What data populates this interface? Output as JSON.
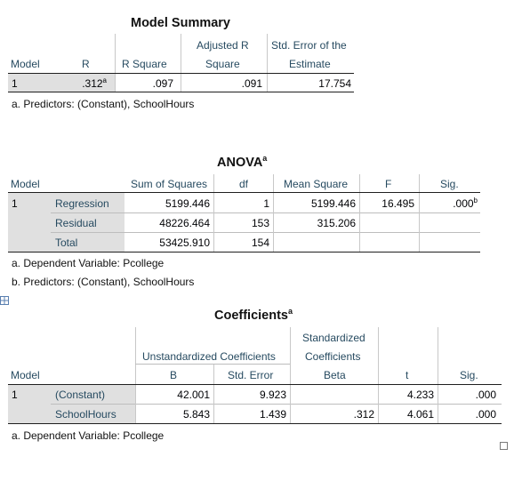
{
  "model_summary": {
    "title": "Model Summary",
    "headers": {
      "model": "Model",
      "r": "R",
      "r_square": "R Square",
      "adj_r_1": "Adjusted R",
      "adj_r_2": "Square",
      "se_1": "Std. Error of the",
      "se_2": "Estimate"
    },
    "row": {
      "model": "1",
      "r": ".312",
      "r_sup": "a",
      "r_square": ".097",
      "adj_r": ".091",
      "se": "17.754"
    },
    "footnote": "a. Predictors: (Constant), SchoolHours"
  },
  "anova": {
    "title": "ANOVA",
    "title_sup": "a",
    "headers": {
      "model": "Model",
      "ss": "Sum of Squares",
      "df": "df",
      "ms": "Mean Square",
      "f": "F",
      "sig": "Sig."
    },
    "model_num": "1",
    "rows": [
      {
        "label": "Regression",
        "ss": "5199.446",
        "df": "1",
        "ms": "5199.446",
        "f": "16.495",
        "sig": ".000",
        "sig_sup": "b"
      },
      {
        "label": "Residual",
        "ss": "48226.464",
        "df": "153",
        "ms": "315.206",
        "f": "",
        "sig": "",
        "sig_sup": ""
      },
      {
        "label": "Total",
        "ss": "53425.910",
        "df": "154",
        "ms": "",
        "f": "",
        "sig": "",
        "sig_sup": ""
      }
    ],
    "footnotes": [
      "a. Dependent Variable: Pcollege",
      "b. Predictors: (Constant), SchoolHours"
    ]
  },
  "coefficients": {
    "title": "Coefficients",
    "title_sup": "a",
    "headers": {
      "std_1": "Standardized",
      "std_2": "Coefficients",
      "unstd": "Unstandardized Coefficients",
      "model": "Model",
      "b": "B",
      "se": "Std. Error",
      "beta": "Beta",
      "t": "t",
      "sig": "Sig."
    },
    "model_num": "1",
    "rows": [
      {
        "label": "(Constant)",
        "b": "42.001",
        "se": "9.923",
        "beta": "",
        "t": "4.233",
        "sig": ".000"
      },
      {
        "label": "SchoolHours",
        "b": "5.843",
        "se": "1.439",
        "beta": ".312",
        "t": "4.061",
        "sig": ".000"
      }
    ],
    "footnote": "a. Dependent Variable: Pcollege"
  }
}
